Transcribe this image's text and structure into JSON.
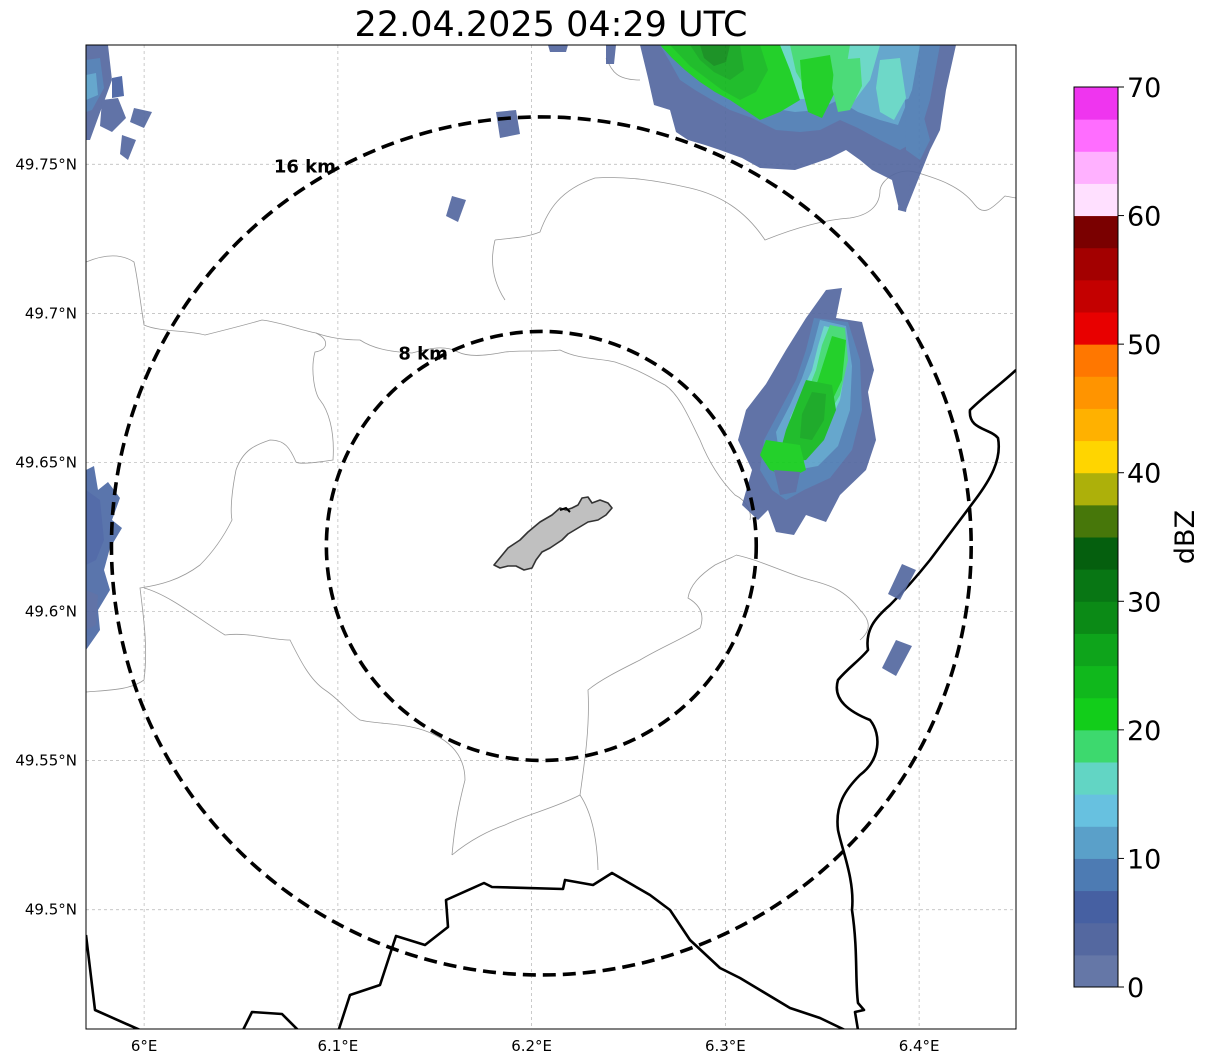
{
  "title": "22.04.2025 04:29 UTC",
  "map": {
    "lon_range": [
      5.97,
      6.45
    ],
    "lat_range": [
      49.46,
      49.79
    ],
    "lon_ticks": [
      6.0,
      6.1,
      6.2,
      6.3,
      6.4
    ],
    "lon_tick_labels": [
      "6°E",
      "6.1°E",
      "6.2°E",
      "6.3°E",
      "6.4°E"
    ],
    "lat_ticks": [
      49.5,
      49.55,
      49.6,
      49.65,
      49.7,
      49.75
    ],
    "lat_tick_labels": [
      "49.5°N",
      "49.55°N",
      "49.6°N",
      "49.65°N",
      "49.7°N",
      "49.75°N"
    ],
    "grid": true,
    "center": [
      6.205,
      49.622
    ],
    "range_rings": [
      {
        "label": "8 km",
        "radius_km": 8
      },
      {
        "label": "16 km",
        "radius_km": 16
      }
    ]
  },
  "colorbar": {
    "label": "dBZ",
    "min": 0,
    "max": 70,
    "ticks": [
      0,
      10,
      20,
      30,
      40,
      50,
      60,
      70
    ],
    "tick_labels": [
      "0",
      "10",
      "20",
      "30",
      "40",
      "50",
      "60",
      "70"
    ],
    "colors": [
      "#6577a7",
      "#5468a0",
      "#4660a2",
      "#4d7bb3",
      "#5aa0c9",
      "#67c1e0",
      "#62d5c4",
      "#3dd96e",
      "#12cd1a",
      "#10b81c",
      "#0ea41b",
      "#0b8a16",
      "#087614",
      "#055f0e",
      "#47770a",
      "#adb00a",
      "#ffd500",
      "#ffb100",
      "#ff9400",
      "#ff7700",
      "#e80000",
      "#c40000",
      "#a30000",
      "#7a0000",
      "#ffe0ff",
      "#ffb1ff",
      "#ff6dff",
      "#ef35ef"
    ]
  },
  "colors": {
    "town_fill": "#c0c0c0",
    "ring": "#000000",
    "border": "#000000",
    "admin": "#9a9a9a"
  }
}
